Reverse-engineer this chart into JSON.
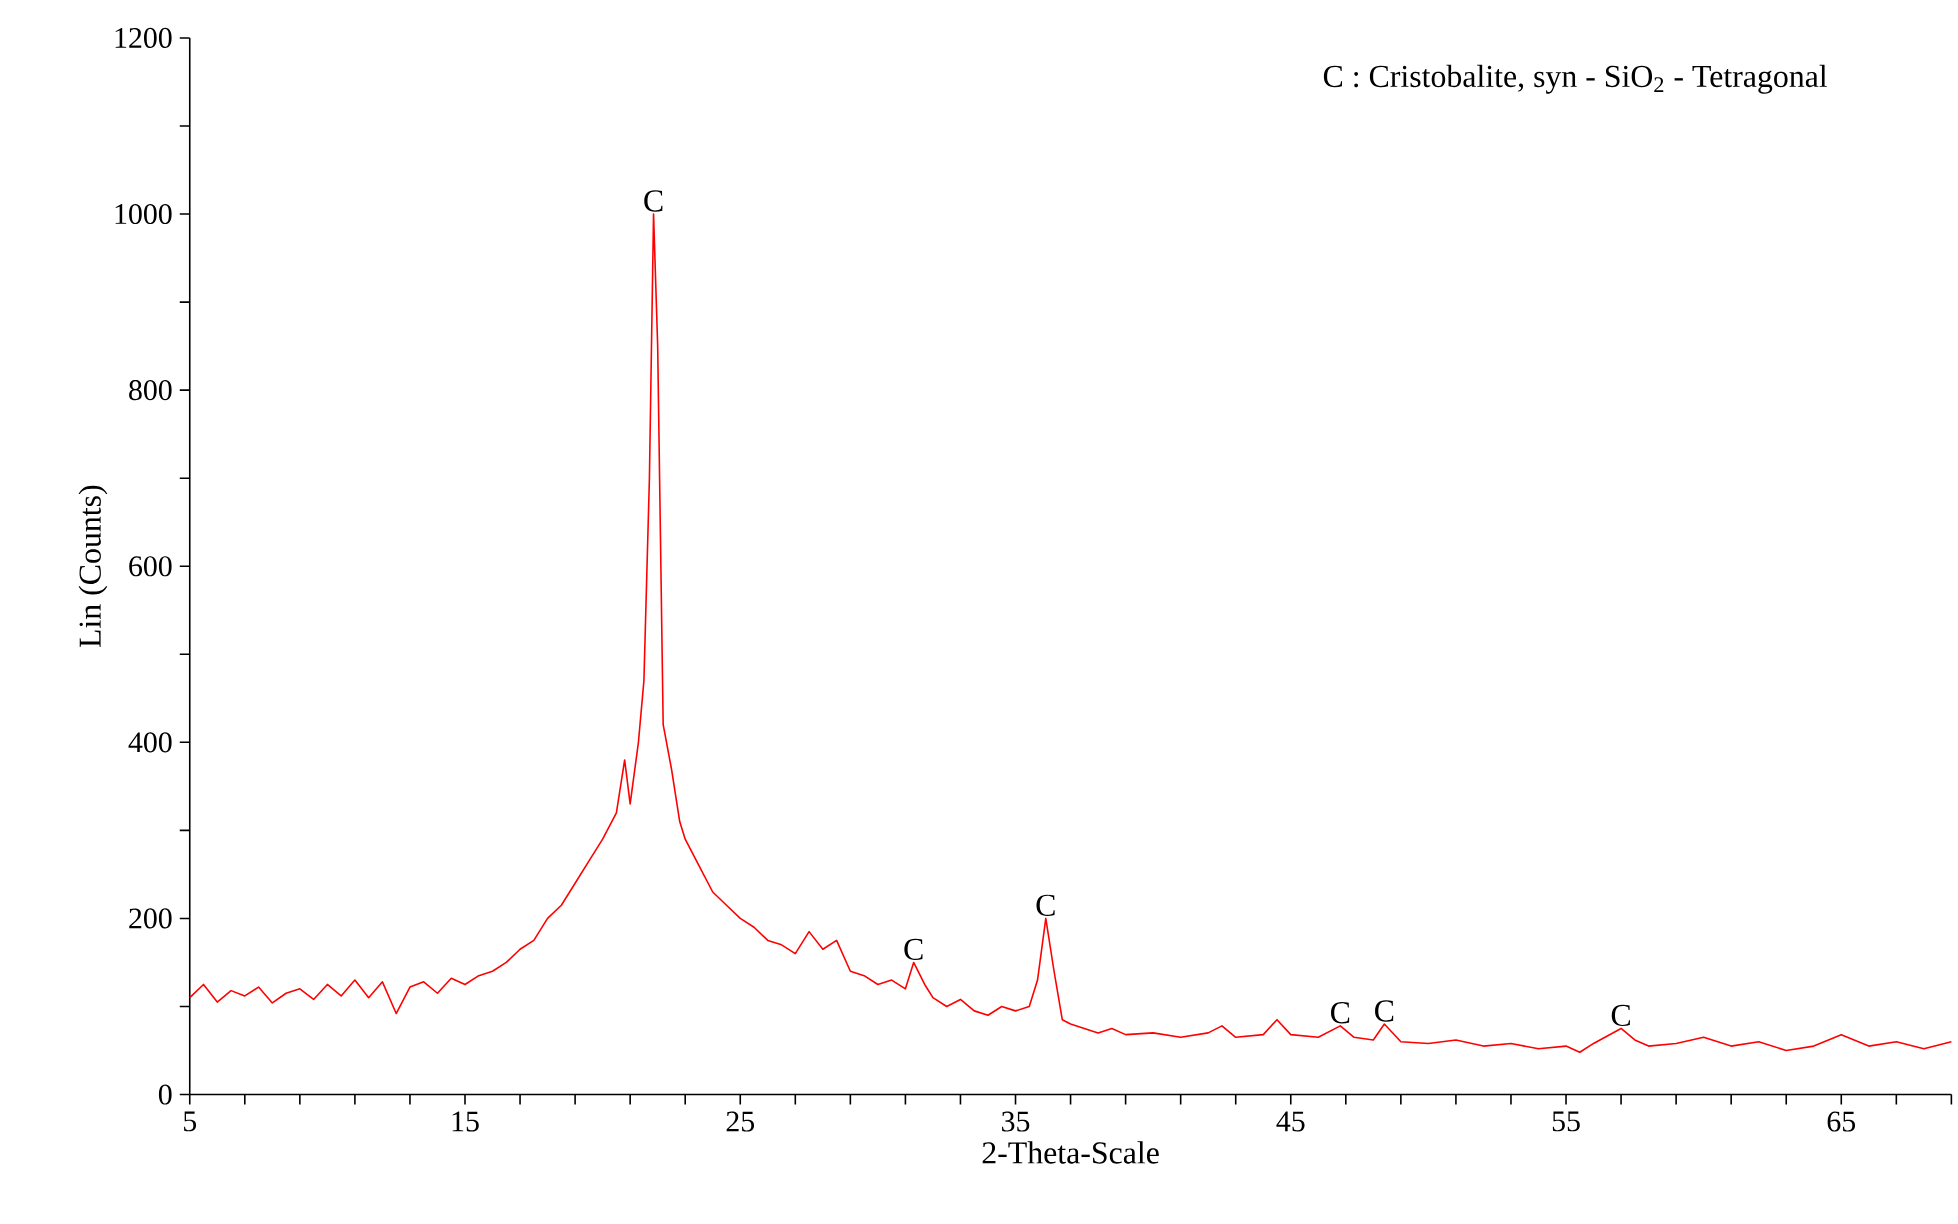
{
  "chart_data": {
    "type": "line",
    "xlabel": "2-Theta-Scale",
    "ylabel": "Lin (Counts)",
    "xlim": [
      5,
      69
    ],
    "ylim": [
      0,
      1200
    ],
    "xticks": [
      5,
      {
        "value": 7,
        "label": null
      },
      {
        "value": 9,
        "label": null
      },
      {
        "value": 11,
        "label": null
      },
      {
        "value": 13,
        "label": null
      },
      15,
      {
        "value": 17,
        "label": null
      },
      {
        "value": 19,
        "label": null
      },
      {
        "value": 21,
        "label": null
      },
      {
        "value": 23,
        "label": null
      },
      25,
      {
        "value": 27,
        "label": null
      },
      {
        "value": 29,
        "label": null
      },
      {
        "value": 31,
        "label": null
      },
      {
        "value": 33,
        "label": null
      },
      35,
      {
        "value": 37,
        "label": null
      },
      {
        "value": 39,
        "label": null
      },
      {
        "value": 41,
        "label": null
      },
      {
        "value": 43,
        "label": null
      },
      45,
      {
        "value": 47,
        "label": null
      },
      {
        "value": 49,
        "label": null
      },
      {
        "value": 51,
        "label": null
      },
      {
        "value": 53,
        "label": null
      },
      55,
      {
        "value": 57,
        "label": null
      },
      {
        "value": 59,
        "label": null
      },
      {
        "value": 61,
        "label": null
      },
      {
        "value": 63,
        "label": null
      },
      65,
      {
        "value": 67,
        "label": null
      },
      {
        "value": 69,
        "label": null
      }
    ],
    "yticks": [
      0,
      {
        "value": 100,
        "label": null
      },
      200,
      {
        "value": 300,
        "label": null
      },
      400,
      {
        "value": 500,
        "label": null
      },
      600,
      {
        "value": 700,
        "label": null
      },
      800,
      {
        "value": 900,
        "label": null
      },
      1000,
      {
        "value": 1100,
        "label": null
      },
      1200
    ],
    "grid": false,
    "marker": "none",
    "line_style": "solid",
    "annotations": [
      "C : Cristobalite, syn - SiO$_{2}$ - Tetragonal",
      {
        "text": "C",
        "x": 21.85,
        "y": 1000
      },
      {
        "text": "C",
        "x": 31.3,
        "y": 150
      },
      {
        "text": "C",
        "x": 36.1,
        "y": 200
      },
      {
        "text": "C",
        "x": 46.8,
        "y": 78
      },
      {
        "text": "C",
        "x": 48.4,
        "y": 80
      },
      {
        "text": "C",
        "x": 57.0,
        "y": 75
      }
    ],
    "series": [
      {
        "color": "#ff0000",
        "x": [
          5,
          5.5,
          6,
          6.5,
          7,
          7.5,
          8,
          8.5,
          9,
          9.5,
          10,
          10.5,
          11,
          11.5,
          12,
          12.5,
          13,
          13.5,
          14,
          14.5,
          15,
          15.5,
          16,
          16.5,
          17,
          17.5,
          18,
          18.5,
          19,
          19.5,
          20,
          20.5,
          20.8,
          21.0,
          21.3,
          21.5,
          21.7,
          21.85,
          22.0,
          22.2,
          22.5,
          22.8,
          23,
          23.5,
          24,
          24.5,
          25,
          25.5,
          26,
          26.5,
          27,
          27.5,
          28,
          28.5,
          29,
          29.5,
          30,
          30.5,
          31,
          31.3,
          31.7,
          32,
          32.5,
          33,
          33.5,
          34,
          34.5,
          35,
          35.5,
          35.8,
          36.1,
          36.4,
          36.7,
          37,
          37.5,
          38,
          38.5,
          39,
          40,
          41,
          42,
          42.5,
          43,
          44,
          44.5,
          45,
          46,
          46.8,
          47.3,
          48,
          48.4,
          49,
          50,
          51,
          52,
          53,
          54,
          55,
          55.5,
          56,
          57,
          57.5,
          58,
          59,
          60,
          61,
          62,
          63,
          64,
          65,
          66,
          67,
          68,
          69
        ],
        "values": [
          110,
          125,
          105,
          118,
          112,
          122,
          104,
          115,
          120,
          108,
          125,
          112,
          130,
          110,
          128,
          92,
          122,
          128,
          115,
          132,
          125,
          135,
          140,
          150,
          165,
          175,
          200,
          215,
          240,
          265,
          290,
          320,
          380,
          330,
          400,
          470,
          700,
          1000,
          850,
          420,
          370,
          310,
          290,
          260,
          230,
          215,
          200,
          190,
          175,
          170,
          160,
          185,
          165,
          175,
          140,
          135,
          125,
          130,
          120,
          150,
          125,
          110,
          100,
          108,
          95,
          90,
          100,
          95,
          100,
          130,
          200,
          140,
          85,
          80,
          75,
          70,
          75,
          68,
          70,
          65,
          70,
          78,
          65,
          68,
          85,
          68,
          65,
          78,
          65,
          62,
          80,
          60,
          58,
          62,
          55,
          58,
          52,
          55,
          48,
          58,
          75,
          62,
          55,
          58,
          65,
          55,
          60,
          50,
          55,
          68,
          55,
          60,
          52,
          60
        ]
      }
    ]
  }
}
